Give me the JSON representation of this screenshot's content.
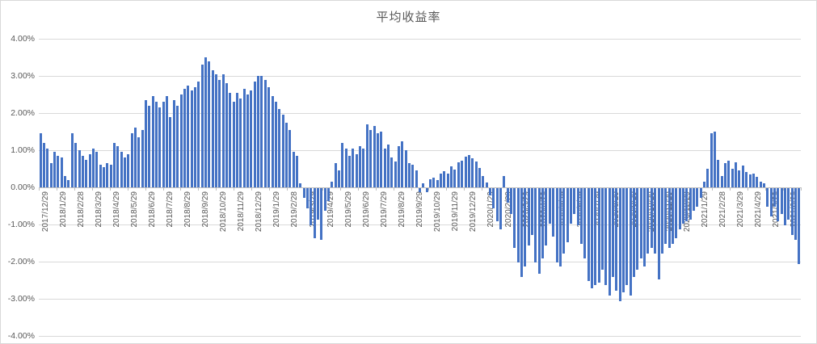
{
  "chart_data": {
    "type": "bar",
    "title": "平均收益率",
    "ylim": [
      -4,
      4
    ],
    "y_tick_step_pct": 1,
    "y_tick_labels": [
      "4.00%",
      "3.00%",
      "2.00%",
      "1.00%",
      "0.00%",
      "-1.00%",
      "-2.00%",
      "-3.00%",
      "-4.00%"
    ],
    "x_tick_labels": [
      "2017/12/29",
      "2018/1/29",
      "2018/2/28",
      "2018/3/29",
      "2018/4/29",
      "2018/5/29",
      "2018/6/29",
      "2018/7/29",
      "2018/8/29",
      "2018/9/29",
      "2018/10/29",
      "2018/11/29",
      "2018/12/29",
      "2019/1/29",
      "2019/2/28",
      "2019/3/29",
      "2019/4/29",
      "2019/5/29",
      "2019/6/29",
      "2019/7/29",
      "2019/8/29",
      "2019/9/29",
      "2019/10/29",
      "2019/11/29",
      "2019/12/29",
      "2020/1/29",
      "2020/2/29",
      "2020/3/29",
      "2020/4/29",
      "2020/5/29",
      "2020/6/29",
      "2020/7/29",
      "2020/8/29",
      "2020/9/29",
      "2020/10/29",
      "2020/11/29",
      "2020/12/29",
      "2021/1/29",
      "2021/2/28",
      "2021/3/29",
      "2021/4/29",
      "2021/5/29",
      "2021/6/29"
    ],
    "bars_per_x_tick": 5,
    "grid": true,
    "legend": false,
    "values_pct": [
      1.45,
      1.2,
      1.05,
      0.65,
      0.95,
      0.85,
      0.8,
      0.3,
      0.2,
      1.45,
      1.2,
      1.0,
      0.85,
      0.75,
      0.9,
      1.05,
      0.95,
      0.6,
      0.55,
      0.65,
      0.6,
      1.2,
      1.1,
      0.95,
      0.8,
      0.9,
      1.45,
      1.6,
      1.35,
      1.55,
      2.35,
      2.2,
      2.45,
      2.3,
      2.15,
      2.3,
      2.45,
      1.9,
      2.35,
      2.2,
      2.5,
      2.65,
      2.75,
      2.6,
      2.7,
      2.85,
      3.3,
      3.5,
      3.4,
      3.15,
      3.05,
      2.9,
      3.05,
      2.8,
      2.55,
      2.3,
      2.55,
      2.4,
      2.65,
      2.5,
      2.6,
      2.85,
      3.0,
      3.0,
      2.9,
      2.7,
      2.45,
      2.3,
      2.1,
      1.95,
      1.75,
      1.55,
      0.95,
      0.85,
      0.1,
      -0.25,
      -0.55,
      -1.0,
      -1.35,
      -0.85,
      -1.4,
      -0.6,
      -0.35,
      0.15,
      0.65,
      0.45,
      1.2,
      1.05,
      0.85,
      1.05,
      0.9,
      1.1,
      1.05,
      1.7,
      1.55,
      1.65,
      1.45,
      1.5,
      1.05,
      1.15,
      0.8,
      0.7,
      1.1,
      1.25,
      1.0,
      0.65,
      0.6,
      0.45,
      -0.1,
      0.1,
      -0.1,
      0.22,
      0.27,
      0.2,
      0.38,
      0.43,
      0.36,
      0.57,
      0.48,
      0.67,
      0.72,
      0.82,
      0.87,
      0.78,
      0.7,
      0.53,
      0.3,
      0.13,
      -0.2,
      -0.55,
      -0.9,
      -1.1,
      0.3,
      -0.4,
      -0.7,
      -1.6,
      -2.0,
      -2.4,
      -2.1,
      -1.55,
      -1.25,
      -2.0,
      -2.3,
      -1.9,
      -1.55,
      -0.95,
      -1.3,
      -2.0,
      -2.1,
      -1.75,
      -1.45,
      -0.95,
      -0.7,
      -1.0,
      -1.5,
      -1.9,
      -2.5,
      -2.7,
      -2.6,
      -2.55,
      -2.2,
      -2.6,
      -2.9,
      -2.4,
      -2.75,
      -3.05,
      -2.8,
      -2.6,
      -2.9,
      -2.4,
      -2.2,
      -1.9,
      -2.1,
      -1.75,
      -1.6,
      -1.75,
      -2.45,
      -1.75,
      -1.5,
      -1.6,
      -1.5,
      -1.35,
      -1.1,
      -0.95,
      -0.9,
      -0.85,
      -0.6,
      -0.5,
      -0.25,
      0.15,
      0.5,
      1.45,
      1.5,
      0.75,
      0.3,
      0.65,
      0.72,
      0.5,
      0.68,
      0.45,
      0.58,
      0.42,
      0.35,
      0.38,
      0.28,
      0.15,
      0.1,
      -0.5,
      -0.75,
      -0.5,
      -0.9,
      -0.7,
      -1.0,
      -0.85,
      -1.25,
      -1.4,
      -2.05
    ],
    "colors": {
      "bar": "#4472C4",
      "grid": "#D9D9D9",
      "axis": "#BFBFBF",
      "text": "#595959",
      "title": "#595959",
      "background": "#FFFFFF",
      "border": "#D9D9D9"
    }
  }
}
